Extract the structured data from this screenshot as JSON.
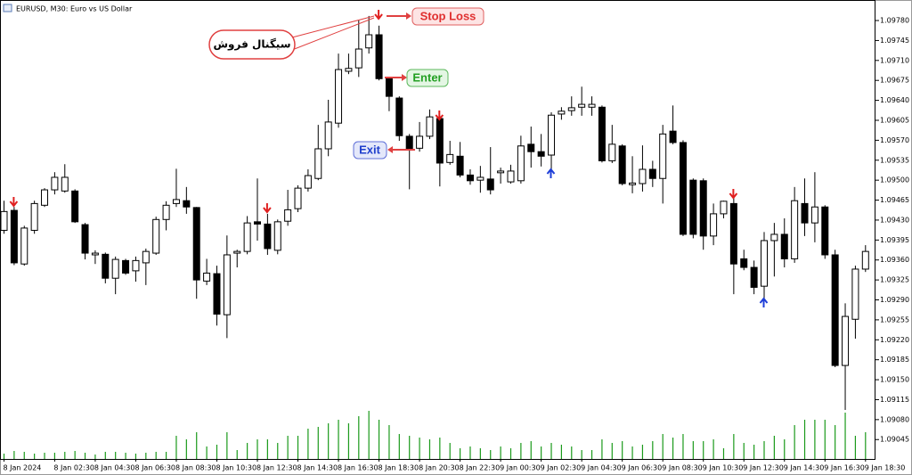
{
  "chart_data": {
    "type": "candlestick",
    "title": "EURUSD, M30:  Euro vs US Dollar",
    "categories": [
      "8 Jan 2024",
      null,
      null,
      null,
      null,
      "8 Jan 02:30",
      null,
      null,
      null,
      "8 Jan 04:30",
      null,
      null,
      null,
      "8 Jan 06:30",
      null,
      null,
      null,
      "8 Jan 08:30",
      null,
      null,
      null,
      "8 Jan 10:30",
      null,
      null,
      null,
      "8 Jan 12:30",
      null,
      null,
      null,
      "8 Jan 14:30",
      null,
      null,
      null,
      "8 Jan 16:30",
      null,
      null,
      null,
      "8 Jan 18:30",
      null,
      null,
      null,
      "8 Jan 20:30",
      null,
      null,
      null,
      "8 Jan 22:30",
      null,
      null,
      null,
      "9 Jan 00:30",
      null,
      null,
      null,
      "9 Jan 02:30",
      null,
      null,
      null,
      "9 Jan 04:30",
      null,
      null,
      null,
      "9 Jan 06:30",
      null,
      null,
      null,
      "9 Jan 08:30",
      null,
      null,
      null,
      "9 Jan 10:30",
      null,
      null,
      null,
      "9 Jan 12:30",
      null,
      null,
      null,
      "9 Jan 14:30",
      null,
      null,
      null,
      "9 Jan 16:30",
      null,
      null,
      null,
      "9 Jan 18:30"
    ],
    "open": [
      1.09412,
      1.09447,
      1.09353,
      1.09412,
      1.09456,
      1.09483,
      1.09481,
      1.09481,
      1.09422,
      1.09369,
      1.0937,
      1.09328,
      1.09359,
      1.09341,
      1.09355,
      1.09372,
      1.09431,
      1.09459,
      1.09464,
      1.09452,
      1.09323,
      1.09336,
      1.09264,
      1.09372,
      1.09375,
      1.09427,
      1.09423,
      1.09377,
      1.09428,
      1.0945,
      1.09486,
      1.09503,
      1.09555,
      1.096,
      1.09691,
      1.09697,
      1.09732,
      1.09755,
      1.09678,
      1.09644,
      1.09577,
      1.09556,
      1.09577,
      1.09608,
      1.09531,
      1.09542,
      1.09509,
      1.095,
      1.09502,
      1.09513,
      1.09497,
      1.09499,
      1.09563,
      1.0955,
      1.09544,
      1.09616,
      1.09622,
      1.09628,
      1.09628,
      1.09628,
      1.09534,
      1.0956,
      1.09492,
      1.09494,
      1.09519,
      1.09503,
      1.09586,
      1.09566,
      1.095,
      1.09499,
      1.09402,
      1.09441,
      1.09459,
      1.09362,
      1.09347,
      1.09314,
      1.09394,
      1.09405,
      1.09362,
      1.09459,
      1.09425,
      1.09453,
      1.09369,
      1.09175,
      1.09256,
      1.09344
    ],
    "high": [
      1.09464,
      1.09453,
      1.0942,
      1.09464,
      1.09486,
      1.09514,
      1.09528,
      1.09484,
      1.09425,
      1.09377,
      1.09373,
      1.09366,
      1.09362,
      1.09366,
      1.0938,
      1.09436,
      1.09463,
      1.0952,
      1.09488,
      1.09453,
      1.09362,
      1.0935,
      1.09403,
      1.09378,
      1.09437,
      1.09503,
      1.09441,
      1.09431,
      1.09483,
      1.09491,
      1.09519,
      1.09597,
      1.09641,
      1.09722,
      1.09722,
      1.0978,
      1.09788,
      1.09771,
      1.09681,
      1.09647,
      1.09581,
      1.09602,
      1.09624,
      1.09613,
      1.09569,
      1.09567,
      1.09519,
      1.09525,
      1.09558,
      1.09522,
      1.09527,
      1.09578,
      1.09594,
      1.09581,
      1.09619,
      1.09628,
      1.09647,
      1.09664,
      1.09647,
      1.09631,
      1.09597,
      1.09563,
      1.09542,
      1.09561,
      1.09534,
      1.09597,
      1.09631,
      1.0957,
      1.09503,
      1.09503,
      1.09459,
      1.09464,
      1.09469,
      1.09378,
      1.09359,
      1.09409,
      1.09425,
      1.09433,
      1.09488,
      1.09503,
      1.09514,
      1.09456,
      1.09378,
      1.09284,
      1.0935,
      1.09386
    ],
    "low": [
      1.09406,
      1.09351,
      1.0935,
      1.09406,
      1.09453,
      1.09475,
      1.09478,
      1.09425,
      1.09361,
      1.09353,
      1.09319,
      1.093,
      1.09334,
      1.09322,
      1.09316,
      1.09369,
      1.09412,
      1.09453,
      1.09441,
      1.09292,
      1.09316,
      1.09245,
      1.09223,
      1.09347,
      1.0937,
      1.09394,
      1.09369,
      1.0937,
      1.0942,
      1.09444,
      1.0948,
      1.095,
      1.09542,
      1.09592,
      1.09686,
      1.09681,
      1.09722,
      1.09675,
      1.09621,
      1.09569,
      1.09484,
      1.0955,
      1.09572,
      1.09489,
      1.09527,
      1.09505,
      1.09492,
      1.09478,
      1.09475,
      1.09494,
      1.09494,
      1.09494,
      1.09522,
      1.09524,
      1.09519,
      1.09606,
      1.09613,
      1.09613,
      1.09613,
      1.09531,
      1.0953,
      1.09491,
      1.09477,
      1.0948,
      1.09488,
      1.09459,
      1.09563,
      1.09402,
      1.09398,
      1.09378,
      1.09386,
      1.09433,
      1.093,
      1.09342,
      1.093,
      1.09284,
      1.09331,
      1.09347,
      1.09355,
      1.09402,
      1.09391,
      1.09362,
      1.09172,
      1.09097,
      1.09222,
      1.09339
    ],
    "close": [
      1.09445,
      1.09355,
      1.09416,
      1.09459,
      1.09483,
      1.09505,
      1.09505,
      1.09427,
      1.09372,
      1.09372,
      1.09328,
      1.09361,
      1.09337,
      1.09359,
      1.09375,
      1.09431,
      1.09456,
      1.09466,
      1.09453,
      1.09325,
      1.09337,
      1.09265,
      1.09369,
      1.09375,
      1.09425,
      1.09423,
      1.0938,
      1.09427,
      1.09448,
      1.09486,
      1.09508,
      1.09555,
      1.09602,
      1.09694,
      1.09696,
      1.0973,
      1.09755,
      1.09678,
      1.09647,
      1.09578,
      1.09555,
      1.09577,
      1.09611,
      1.0953,
      1.09545,
      1.09509,
      1.09499,
      1.09505,
      1.09483,
      1.09516,
      1.09516,
      1.0956,
      1.0955,
      1.09542,
      1.09614,
      1.09621,
      1.09627,
      1.09633,
      1.09633,
      1.09534,
      1.09563,
      1.09494,
      1.09495,
      1.09519,
      1.09503,
      1.09581,
      1.09566,
      1.09405,
      1.09405,
      1.09402,
      1.09441,
      1.09463,
      1.09353,
      1.09347,
      1.09312,
      1.09394,
      1.09405,
      1.09362,
      1.09464,
      1.09425,
      1.09453,
      1.09369,
      1.09175,
      1.09261,
      1.09344,
      1.09375
    ],
    "volume": [
      6,
      9,
      8,
      6,
      7,
      7,
      8,
      9,
      7,
      5,
      8,
      8,
      7,
      6,
      7,
      8,
      8,
      26,
      22,
      30,
      14,
      16,
      30,
      10,
      18,
      22,
      22,
      18,
      26,
      26,
      34,
      36,
      40,
      44,
      40,
      48,
      54,
      44,
      38,
      28,
      26,
      24,
      22,
      24,
      18,
      12,
      14,
      12,
      10,
      14,
      12,
      18,
      20,
      14,
      18,
      16,
      14,
      10,
      10,
      22,
      18,
      20,
      14,
      16,
      20,
      28,
      24,
      28,
      20,
      20,
      22,
      12,
      28,
      18,
      16,
      20,
      26,
      22,
      38,
      44,
      44,
      44,
      38,
      52,
      26,
      30
    ],
    "up_color": "#ffffff",
    "down_color": "#000000",
    "wick_color": "#000000",
    "volume_color": "#1a9a1a",
    "ylim": [
      1.09011,
      1.09816
    ],
    "yticks": [
      {
        "value": 1.0978,
        "label": "1.09780"
      },
      1.09745,
      {
        "value": 1.0971,
        "label": "1.09710"
      },
      1.09675,
      {
        "value": 1.0964,
        "label": "1.09640"
      },
      1.09605,
      {
        "value": 1.0957,
        "label": "1.09570"
      },
      1.09535,
      {
        "value": 1.095,
        "label": "1.09500"
      },
      1.09465,
      {
        "value": 1.0943,
        "label": "1.09430"
      },
      1.09395,
      {
        "value": 1.0936,
        "label": "1.09360"
      },
      1.09325,
      {
        "value": 1.0929,
        "label": "1.09290"
      },
      1.09255,
      {
        "value": 1.0922,
        "label": "1.09220"
      },
      1.09185,
      {
        "value": 1.0915,
        "label": "1.09150"
      },
      1.09115,
      {
        "value": 1.0908,
        "label": "1.09080"
      },
      1.09045
    ],
    "grid": false,
    "annotations": [
      "Stop Loss",
      "Enter",
      "Exit",
      "سیگنال فروش"
    ]
  }
}
